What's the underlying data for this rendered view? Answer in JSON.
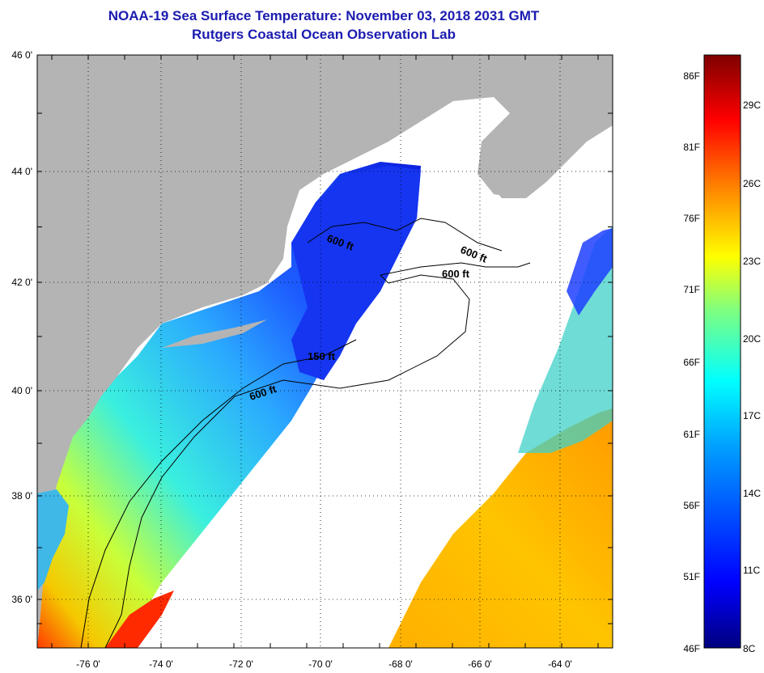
{
  "title": "NOAA-19 Sea Surface Temperature:  November 03, 2018 2031 GMT",
  "subtitle": "Rutgers Coastal Ocean Observation Lab",
  "lat_labels": [
    "46 0'",
    "44 0'",
    "42 0'",
    "40 0'",
    "38 0'",
    "36 0'"
  ],
  "lon_labels": [
    "-76 0'",
    "-74 0'",
    "-72 0'",
    "-70 0'",
    "-68 0'",
    "-66 0'",
    "-64 0'"
  ],
  "contour_labels": [
    "600 ft",
    "600 ft",
    "600 ft",
    "150 ft",
    "600 ft"
  ],
  "colorbar": {
    "fahrenheit": [
      "86F",
      "81F",
      "76F",
      "71F",
      "66F",
      "61F",
      "56F",
      "51F",
      "46F"
    ],
    "celsius": [
      "29C",
      "26C",
      "23C",
      "20C",
      "17C",
      "14C",
      "11C",
      "8C"
    ],
    "colors": [
      "#00007f",
      "#0000ff",
      "#007fff",
      "#00ffff",
      "#7fff7f",
      "#ffff00",
      "#ff7f00",
      "#ff0000",
      "#7f0000"
    ]
  },
  "colors": {
    "land": "#b4b4b4",
    "title": "#1b1bb0",
    "cloud": "#ffffff"
  }
}
